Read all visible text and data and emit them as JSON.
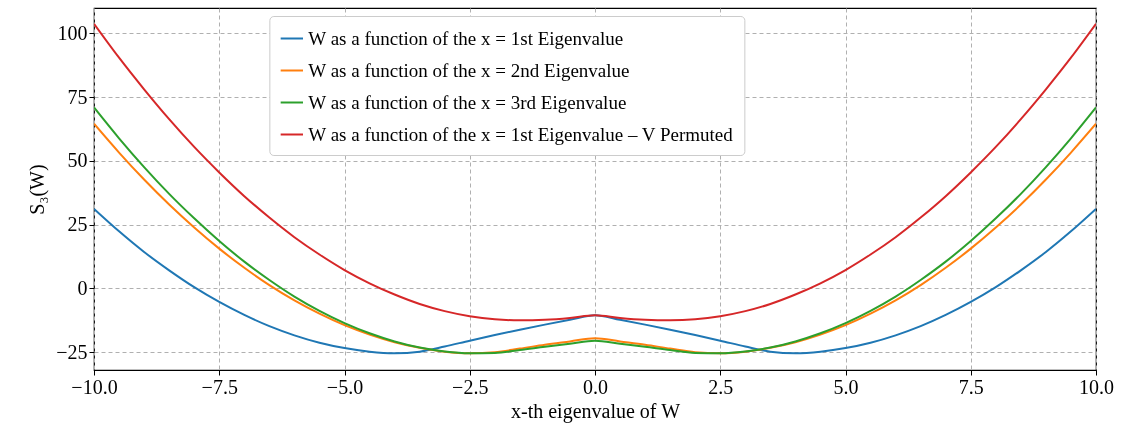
{
  "chart_data": {
    "type": "line",
    "xlabel": "x-th eigenvalue of W",
    "ylabel": "S₃(W)",
    "x": [
      -10,
      -9.5,
      -9,
      -8.5,
      -8,
      -7.5,
      -7,
      -6.5,
      -6,
      -5.5,
      -5,
      -4.5,
      -4,
      -3.5,
      -3,
      -2.5,
      -2,
      -1.5,
      -1,
      -0.5,
      0,
      0.5,
      1,
      1.5,
      2,
      2.5,
      3,
      3.5,
      4,
      4.5,
      5,
      5.5,
      6,
      6.5,
      7,
      7.5,
      8,
      8.5,
      9,
      9.5,
      10
    ],
    "series": [
      {
        "name": "W as a function of the x = 1st Eigenvalue",
        "color": "#1f77b4",
        "values": [
          31.2,
          22.4,
          14.3,
          7.1,
          0.5,
          -5.3,
          -10.4,
          -14.8,
          -18.4,
          -21.3,
          -23.4,
          -24.8,
          -25.4,
          -24.8,
          -22.8,
          -20.5,
          -18.3,
          -16.2,
          -14.2,
          -12.3,
          -10.5,
          -12.3,
          -14.2,
          -16.2,
          -18.3,
          -20.5,
          -22.8,
          -24.8,
          -25.4,
          -24.8,
          -23.4,
          -21.3,
          -18.4,
          -14.8,
          -10.4,
          -5.3,
          0.5,
          7.1,
          14.3,
          22.4,
          31.2
        ]
      },
      {
        "name": "W as a function of the x = 2nd Eigenvalue",
        "color": "#ff7f0e",
        "values": [
          64.6,
          53.3,
          42.7,
          32.9,
          23.9,
          15.6,
          8.1,
          1.3,
          -4.7,
          -9.9,
          -14.4,
          -18.1,
          -21.1,
          -23.3,
          -24.8,
          -25.4,
          -25,
          -23.6,
          -22.1,
          -20.8,
          -19.5,
          -20.8,
          -22.1,
          -23.6,
          -25,
          -25.4,
          -24.8,
          -23.3,
          -21.1,
          -18.1,
          -14.4,
          -9.9,
          -4.7,
          1.3,
          8.1,
          15.6,
          23.9,
          32.9,
          42.7,
          53.3,
          64.6
        ]
      },
      {
        "name": "W as a function of the x = 3rd Eigenvalue",
        "color": "#2ca02c",
        "values": [
          71,
          58.9,
          47.6,
          37.1,
          27.5,
          18.6,
          10.5,
          3.3,
          -3.2,
          -8.8,
          -13.6,
          -17.6,
          -20.8,
          -23.2,
          -24.7,
          -25.4,
          -25.3,
          -24.2,
          -22.9,
          -21.7,
          -20.5,
          -21.7,
          -22.9,
          -24.2,
          -25.3,
          -25.4,
          -24.7,
          -23.2,
          -20.8,
          -17.6,
          -13.6,
          -8.8,
          -3.2,
          3.3,
          10.5,
          18.6,
          27.5,
          37.1,
          47.6,
          58.9,
          71
        ]
      },
      {
        "name": "W as a function of the x = 1st Eigenvalue – V Permuted",
        "color": "#d62728",
        "values": [
          103.8,
          90.5,
          78.1,
          66.4,
          55.5,
          45.5,
          36.2,
          27.8,
          20.1,
          13.3,
          7.2,
          2,
          -2.4,
          -6.1,
          -8.9,
          -10.9,
          -12.1,
          -12.5,
          -12.3,
          -11.6,
          -10.5,
          -11.6,
          -12.3,
          -12.5,
          -12.1,
          -10.9,
          -8.9,
          -6.1,
          -2.4,
          2,
          7.2,
          13.3,
          20.1,
          27.8,
          36.2,
          45.5,
          55.5,
          66.4,
          78.1,
          90.5,
          103.8
        ]
      }
    ],
    "xlim": [
      -10,
      10
    ],
    "xticks": [
      {
        "value": -10,
        "label": "−10.0"
      },
      -7.5,
      {
        "value": -5,
        "label": "−5.0"
      },
      -2.5,
      {
        "value": 0,
        "label": "0.0"
      },
      2.5,
      {
        "value": 5,
        "label": "5.0"
      },
      7.5,
      {
        "value": 10,
        "label": "10.0"
      }
    ],
    "ylim": [
      -32,
      110
    ],
    "yticks": [
      -25,
      0,
      25,
      50,
      75,
      100
    ],
    "grid": true,
    "legend": "top",
    "line_style": "solid"
  }
}
